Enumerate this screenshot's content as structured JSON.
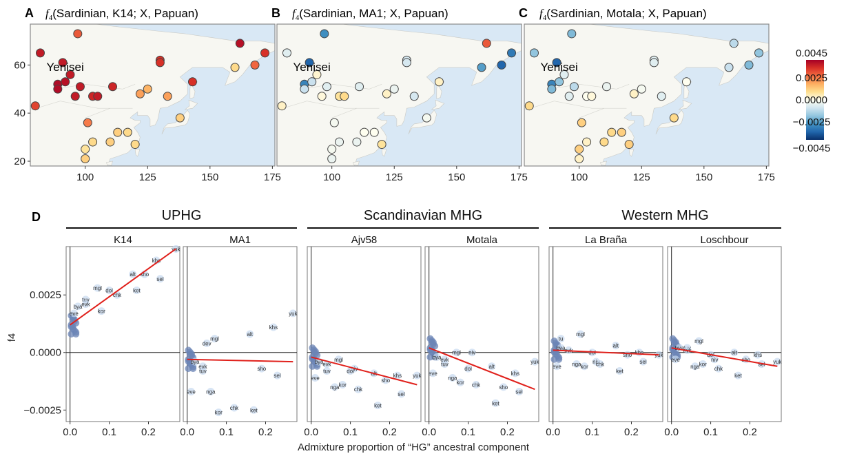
{
  "colors": {
    "sea": "#d9e8f5",
    "land": "#f7f7f2",
    "frame": "#555555",
    "fit_line": "#e0201b",
    "point": "#6b84b5",
    "colorbar": [
      "#08306b",
      "#2166ac",
      "#4393c3",
      "#92c5de",
      "#d1e5f0",
      "#fffff0",
      "#fee090",
      "#fdae61",
      "#f46d43",
      "#d73027",
      "#a50026"
    ]
  },
  "maps": {
    "panels": [
      {
        "letter": "A",
        "title_prefix": "f",
        "title_sub": "4",
        "title_rest": "(Sardinian, K14; X, Papuan)"
      },
      {
        "letter": "B",
        "title_prefix": "f",
        "title_sub": "4",
        "title_rest": "(Sardinian, MA1; X, Papuan)"
      },
      {
        "letter": "C",
        "title_prefix": "f",
        "title_sub": "4",
        "title_rest": "(Sardinian, Motala; X, Papuan)"
      }
    ],
    "label": "Yenisei",
    "x_ticks": [
      "100",
      "125",
      "150",
      "175"
    ],
    "y_ticks": [
      "20",
      "40",
      "60"
    ],
    "colorbar_ticks": [
      "0.0045",
      "0.0025",
      "0.0000",
      "−0.0025",
      "−0.0045"
    ],
    "sites": [
      {
        "lon": 82,
        "lat": 65
      },
      {
        "lon": 80,
        "lat": 43
      },
      {
        "lon": 89,
        "lat": 52
      },
      {
        "lon": 89,
        "lat": 50
      },
      {
        "lon": 91,
        "lat": 61
      },
      {
        "lon": 92,
        "lat": 53
      },
      {
        "lon": 94,
        "lat": 56
      },
      {
        "lon": 96,
        "lat": 47
      },
      {
        "lon": 97,
        "lat": 73
      },
      {
        "lon": 98,
        "lat": 51
      },
      {
        "lon": 100,
        "lat": 25
      },
      {
        "lon": 100,
        "lat": 21
      },
      {
        "lon": 101,
        "lat": 36
      },
      {
        "lon": 103,
        "lat": 28
      },
      {
        "lon": 103,
        "lat": 47
      },
      {
        "lon": 105,
        "lat": 47
      },
      {
        "lon": 110,
        "lat": 28
      },
      {
        "lon": 111,
        "lat": 51
      },
      {
        "lon": 113,
        "lat": 32
      },
      {
        "lon": 117,
        "lat": 32
      },
      {
        "lon": 120,
        "lat": 27
      },
      {
        "lon": 122,
        "lat": 48
      },
      {
        "lon": 125,
        "lat": 50
      },
      {
        "lon": 130,
        "lat": 62
      },
      {
        "lon": 130,
        "lat": 61
      },
      {
        "lon": 133,
        "lat": 47
      },
      {
        "lon": 138,
        "lat": 38
      },
      {
        "lon": 143,
        "lat": 53
      },
      {
        "lon": 160,
        "lat": 59
      },
      {
        "lon": 162,
        "lat": 69
      },
      {
        "lon": 168,
        "lat": 60
      },
      {
        "lon": 172,
        "lat": 65
      }
    ],
    "values": [
      [
        0.004,
        0.0033,
        0.0043,
        0.0043,
        0.004,
        0.0042,
        0.004,
        0.004,
        0.003,
        0.004,
        0.0008,
        0.0012,
        0.0025,
        0.001,
        0.0038,
        0.004,
        0.0012,
        0.0038,
        0.0012,
        0.001,
        0.001,
        0.002,
        0.0017,
        0.0036,
        0.0036,
        0.002,
        0.0012,
        0.0036,
        0.001,
        0.0042,
        0.0028,
        0.0036
      ],
      [
        -0.0006,
        0.0004,
        -0.003,
        -0.001,
        -0.0036,
        -0.001,
        0.0003,
        0.0002,
        -0.0028,
        -0.0006,
        -0.0002,
        -0.0004,
        -0.0002,
        -0.0004,
        0.0008,
        0.001,
        -0.0004,
        -0.0006,
        0.0,
        0.0,
        0.0008,
        0.0004,
        -0.0004,
        -0.0008,
        -0.0008,
        -0.0008,
        -0.0002,
        0.0004,
        -0.0025,
        0.003,
        -0.0036,
        -0.0032
      ],
      [
        -0.0018,
        0.001,
        -0.003,
        -0.002,
        -0.0036,
        -0.0018,
        -0.0006,
        -0.0006,
        -0.002,
        -0.0012,
        0.0012,
        0.0004,
        0.0012,
        0.0004,
        0.0,
        0.0002,
        0.001,
        -0.0004,
        0.001,
        0.0012,
        0.0012,
        0.0004,
        -0.0002,
        -0.0006,
        -0.0006,
        -0.0006,
        0.001,
        0.0,
        -0.001,
        -0.0012,
        -0.002,
        -0.0018
      ]
    ]
  },
  "chart_data": {
    "type": "scatter",
    "panel_letter": "D",
    "ylabel": "f4",
    "xlabel": "Admixture proportion of “HG” ancestral component",
    "xlim": [
      -0.01,
      0.28
    ],
    "ylim": [
      -0.003,
      0.0046
    ],
    "x_ticks": [
      "0.0",
      "0.1",
      "0.2"
    ],
    "y_ticks": [
      "0.0025",
      "0.0000",
      "−0.0025"
    ],
    "groups": [
      {
        "label": "UPHG",
        "panels": [
          0,
          1
        ]
      },
      {
        "label": "Scandinavian MHG",
        "panels": [
          2,
          3
        ]
      },
      {
        "label": "Western MHG",
        "panels": [
          4,
          5
        ]
      }
    ],
    "label_x": {
      "yuk": 0.27,
      "khs": 0.22,
      "sel": 0.23,
      "sho": 0.19,
      "ket": 0.17,
      "alt": 0.16,
      "chk": 0.12,
      "dol": 0.1,
      "niv": 0.11,
      "kor": 0.08,
      "nga": 0.06,
      "mgl": 0.07,
      "tuv": 0.04,
      "evk": 0.04,
      "eve": 0.01,
      "bya": 0.02,
      "tu": 0.02
    },
    "series": [
      {
        "name": "K14",
        "fit": [
          0.0012,
          0.0045
        ],
        "labels": {
          "yuk": 0.0045,
          "khs": 0.004,
          "sel": 0.0032,
          "sho": 0.0034,
          "ket": 0.0027,
          "alt": 0.0034,
          "chk": 0.0025,
          "dol": 0.0027,
          "mgl": 0.0028,
          "tuv": 0.0023,
          "kor": 0.0018,
          "bya": 0.002,
          "evk": 0.0021,
          "eve": 0.0017
        }
      },
      {
        "name": "MA1",
        "fit": [
          -0.0003,
          -0.0004
        ],
        "labels": {
          "yuk": 0.0017,
          "khs": 0.0011,
          "alt": 0.0008,
          "dev": 0.0004,
          "mgl": 0.0006,
          "sho": -0.0007,
          "sel": -0.001,
          "tuv": -0.0008,
          "evk": -0.0006,
          "bya": -0.0004,
          "nga": -0.0017,
          "eve": -0.0017,
          "chk": -0.0024,
          "ket": -0.0025,
          "kor": -0.0026
        }
      },
      {
        "name": "Ajv58",
        "fit": [
          -0.0002,
          -0.0014
        ],
        "labels": {
          "mgl": -0.0003,
          "yuk": -0.001,
          "khs": -0.001,
          "sho": -0.0012,
          "alt": -0.0009,
          "sel": -0.0018,
          "niv": -0.0007,
          "dol": -0.0008,
          "kor": -0.0014,
          "nga": -0.0015,
          "chk": -0.0016,
          "ket": -0.0023,
          "tuv": -0.0008,
          "evk": -0.0005,
          "bya": -0.0004,
          "eve": -0.0011
        }
      },
      {
        "name": "Motala",
        "fit": [
          0.0002,
          -0.0016
        ],
        "labels": {
          "mgl": 0.0,
          "yuk": -0.0004,
          "niv": 0.0,
          "alt": -0.0006,
          "dol": -0.0007,
          "khs": -0.0009,
          "sho": -0.0015,
          "sel": -0.0017,
          "nga": -0.0011,
          "kor": -0.0013,
          "chk": -0.0014,
          "ket": -0.0022,
          "tuv": -0.0005,
          "evk": -0.0003,
          "bya": -0.0002,
          "eve": -0.0009
        }
      },
      {
        "name": "La Braña",
        "fit": [
          0.0001,
          -0.0001
        ],
        "labels": {
          "mgl": 0.0008,
          "tu": 0.0006,
          "alt": 0.0003,
          "dol": 0.0,
          "khs": 0.0,
          "sho": -0.0001,
          "yuk": -0.0001,
          "sel": -0.0004,
          "niv": -0.0004,
          "nga": -0.0005,
          "kor": -0.0006,
          "chk": -0.0005,
          "ket": -0.0008,
          "evk": 0.0001,
          "bya": 0.0002,
          "eve": -0.0006
        }
      },
      {
        "name": "Loschbour",
        "fit": [
          0.0002,
          -0.0006
        ],
        "labels": {
          "mgl": 0.0005,
          "tuv": 0.0002,
          "alt": 0.0,
          "dol": -0.0001,
          "khs": -0.0001,
          "sho": -0.0003,
          "yuk": -0.0004,
          "niv": -0.0003,
          "nga": -0.0006,
          "kor": -0.0005,
          "chk": -0.0007,
          "ket": -0.001,
          "sel": -0.0005,
          "evk": 0.0001,
          "bya": 0.0002,
          "eve": -0.0003
        }
      }
    ]
  }
}
